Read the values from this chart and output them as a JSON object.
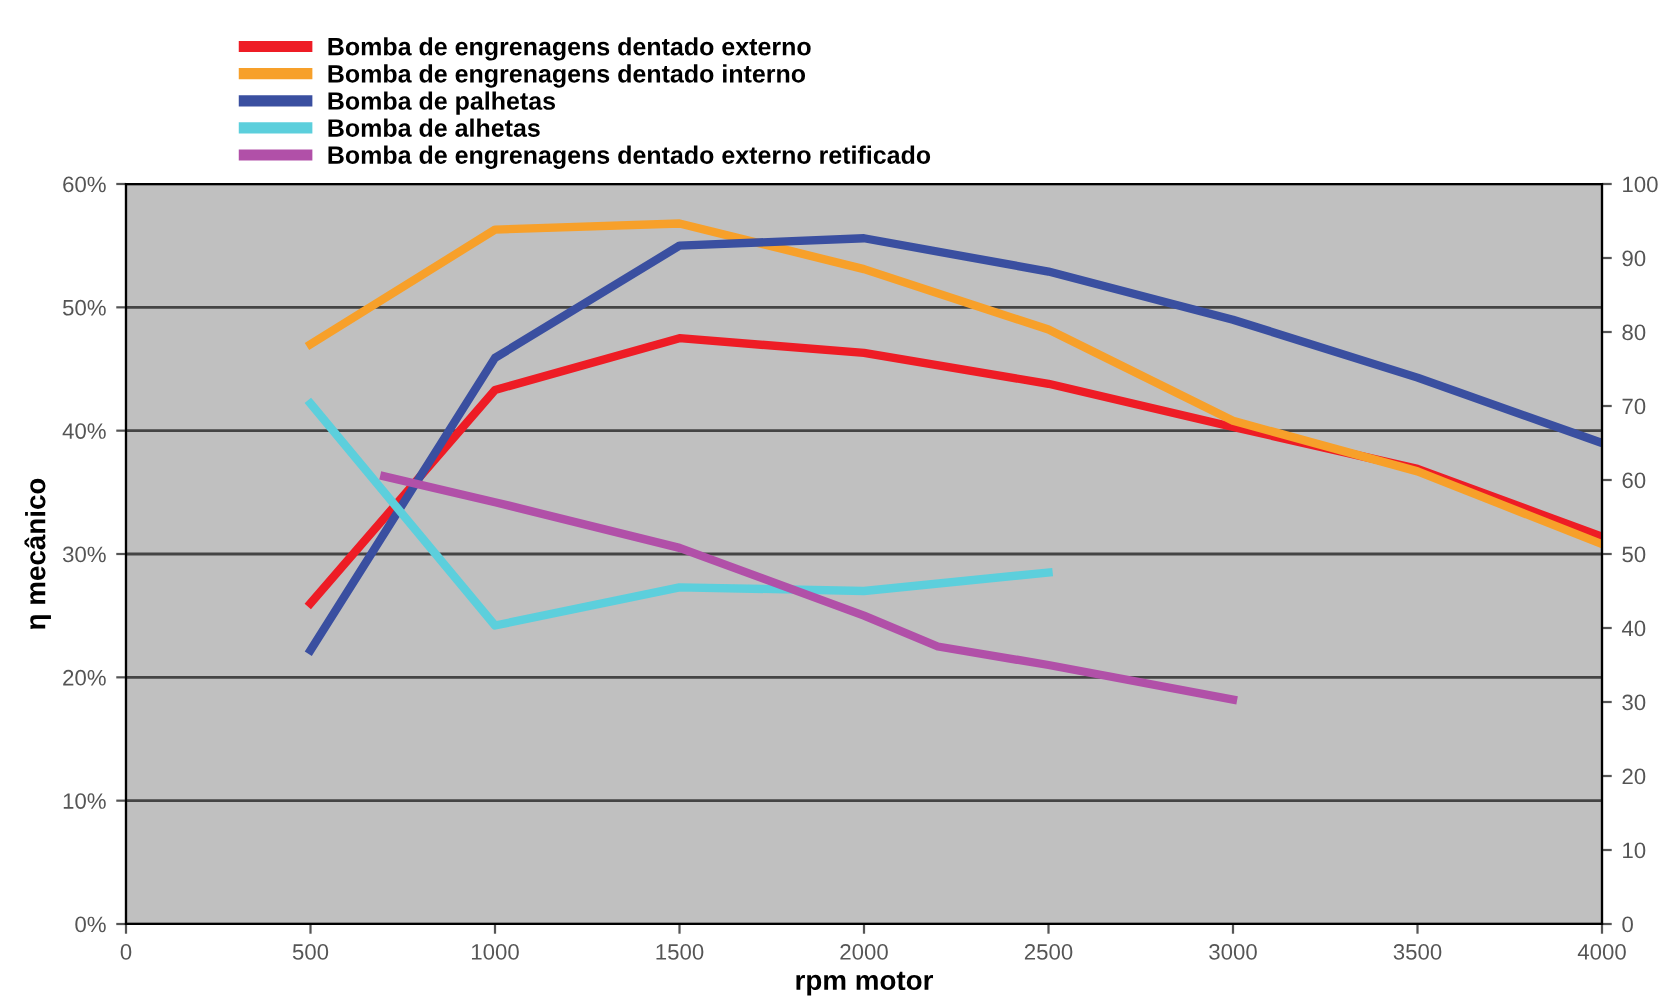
{
  "chart_data": {
    "type": "line",
    "xlabel": "rpm motor",
    "ylabel": "η mecânico",
    "x": [
      500,
      1000,
      1500,
      2000,
      2500,
      3000,
      3500,
      4000
    ],
    "series": [
      {
        "name": "Bomba de engrenagens dentado externo",
        "color": "#ee1c25",
        "values": [
          26,
          43.3,
          47.5,
          46.3,
          43.8,
          40.3,
          36.9,
          31.4
        ]
      },
      {
        "name": "Bomba de engrenagens dentado interno",
        "color": "#f7a02a",
        "values": [
          47,
          56.3,
          56.8,
          53.1,
          48.2,
          40.8,
          36.7,
          30.8
        ]
      },
      {
        "name": "Bomba de palhetas",
        "color": "#3a4fa0",
        "values": [
          22.2,
          45.9,
          55,
          55.6,
          52.9,
          49,
          44.3,
          39
        ]
      },
      {
        "name": "Bomba de alhetas",
        "color": "#5ccfdc",
        "x": [
          500,
          1000,
          1500,
          2000,
          2500
        ],
        "values": [
          42.2,
          24.2,
          27.3,
          27,
          28.5
        ]
      },
      {
        "name": "Bomba de engrenagens dentado externo retificado",
        "color": "#b150a8",
        "x": [
          700,
          1000,
          1500,
          2000,
          2200,
          2500,
          3000
        ],
        "values": [
          36.3,
          34.2,
          30.5,
          25,
          22.5,
          21,
          18.2
        ]
      }
    ],
    "xlim": [
      0,
      4000
    ],
    "xticks": [
      0,
      500,
      1000,
      1500,
      2000,
      2500,
      3000,
      3500,
      4000
    ],
    "ylim": [
      0,
      60
    ],
    "yticks": [
      {
        "value": 0,
        "label": "0%"
      },
      {
        "value": 10,
        "label": "10%"
      },
      {
        "value": 20,
        "label": "20%"
      },
      {
        "value": 30,
        "label": "30%"
      },
      {
        "value": 40,
        "label": "40%"
      },
      {
        "value": 50,
        "label": "50%"
      },
      {
        "value": 60,
        "label": "60%"
      }
    ],
    "y2lim": [
      0,
      100
    ],
    "y2ticks": [
      0,
      10,
      20,
      30,
      40,
      50,
      60,
      70,
      80,
      90,
      100
    ],
    "grid": "y",
    "legend": "top",
    "marker": "none",
    "line_style": "solid"
  }
}
